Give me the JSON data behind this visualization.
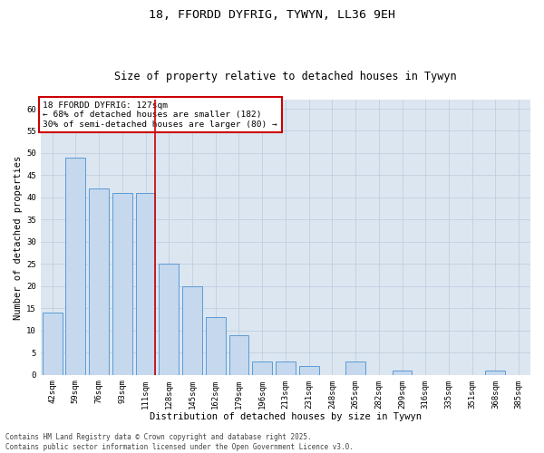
{
  "title1": "18, FFORDD DYFRIG, TYWYN, LL36 9EH",
  "title2": "Size of property relative to detached houses in Tywyn",
  "xlabel": "Distribution of detached houses by size in Tywyn",
  "ylabel": "Number of detached properties",
  "categories": [
    "42sqm",
    "59sqm",
    "76sqm",
    "93sqm",
    "111sqm",
    "128sqm",
    "145sqm",
    "162sqm",
    "179sqm",
    "196sqm",
    "213sqm",
    "231sqm",
    "248sqm",
    "265sqm",
    "282sqm",
    "299sqm",
    "316sqm",
    "335sqm",
    "351sqm",
    "368sqm",
    "385sqm"
  ],
  "values": [
    14,
    49,
    42,
    41,
    41,
    25,
    20,
    13,
    9,
    3,
    3,
    2,
    0,
    3,
    0,
    1,
    0,
    0,
    0,
    1,
    0
  ],
  "bar_color": "#c5d8ed",
  "bar_edge_color": "#5b9bd5",
  "annotation_line1": "18 FFORDD DYFRIG: 127sqm",
  "annotation_line2": "← 68% of detached houses are smaller (182)",
  "annotation_line3": "30% of semi-detached houses are larger (80) →",
  "annotation_box_color": "#ffffff",
  "annotation_border_color": "#cc0000",
  "ylim": [
    0,
    62
  ],
  "yticks": [
    0,
    5,
    10,
    15,
    20,
    25,
    30,
    35,
    40,
    45,
    50,
    55,
    60
  ],
  "grid_color": "#c0cfe0",
  "bg_color": "#dce6f1",
  "footer": "Contains HM Land Registry data © Crown copyright and database right 2025.\nContains public sector information licensed under the Open Government Licence v3.0.",
  "title1_fontsize": 9.5,
  "title2_fontsize": 8.5,
  "xlabel_fontsize": 7.5,
  "ylabel_fontsize": 7.5,
  "tick_fontsize": 6.5,
  "annotation_fontsize": 6.8,
  "footer_fontsize": 5.5
}
